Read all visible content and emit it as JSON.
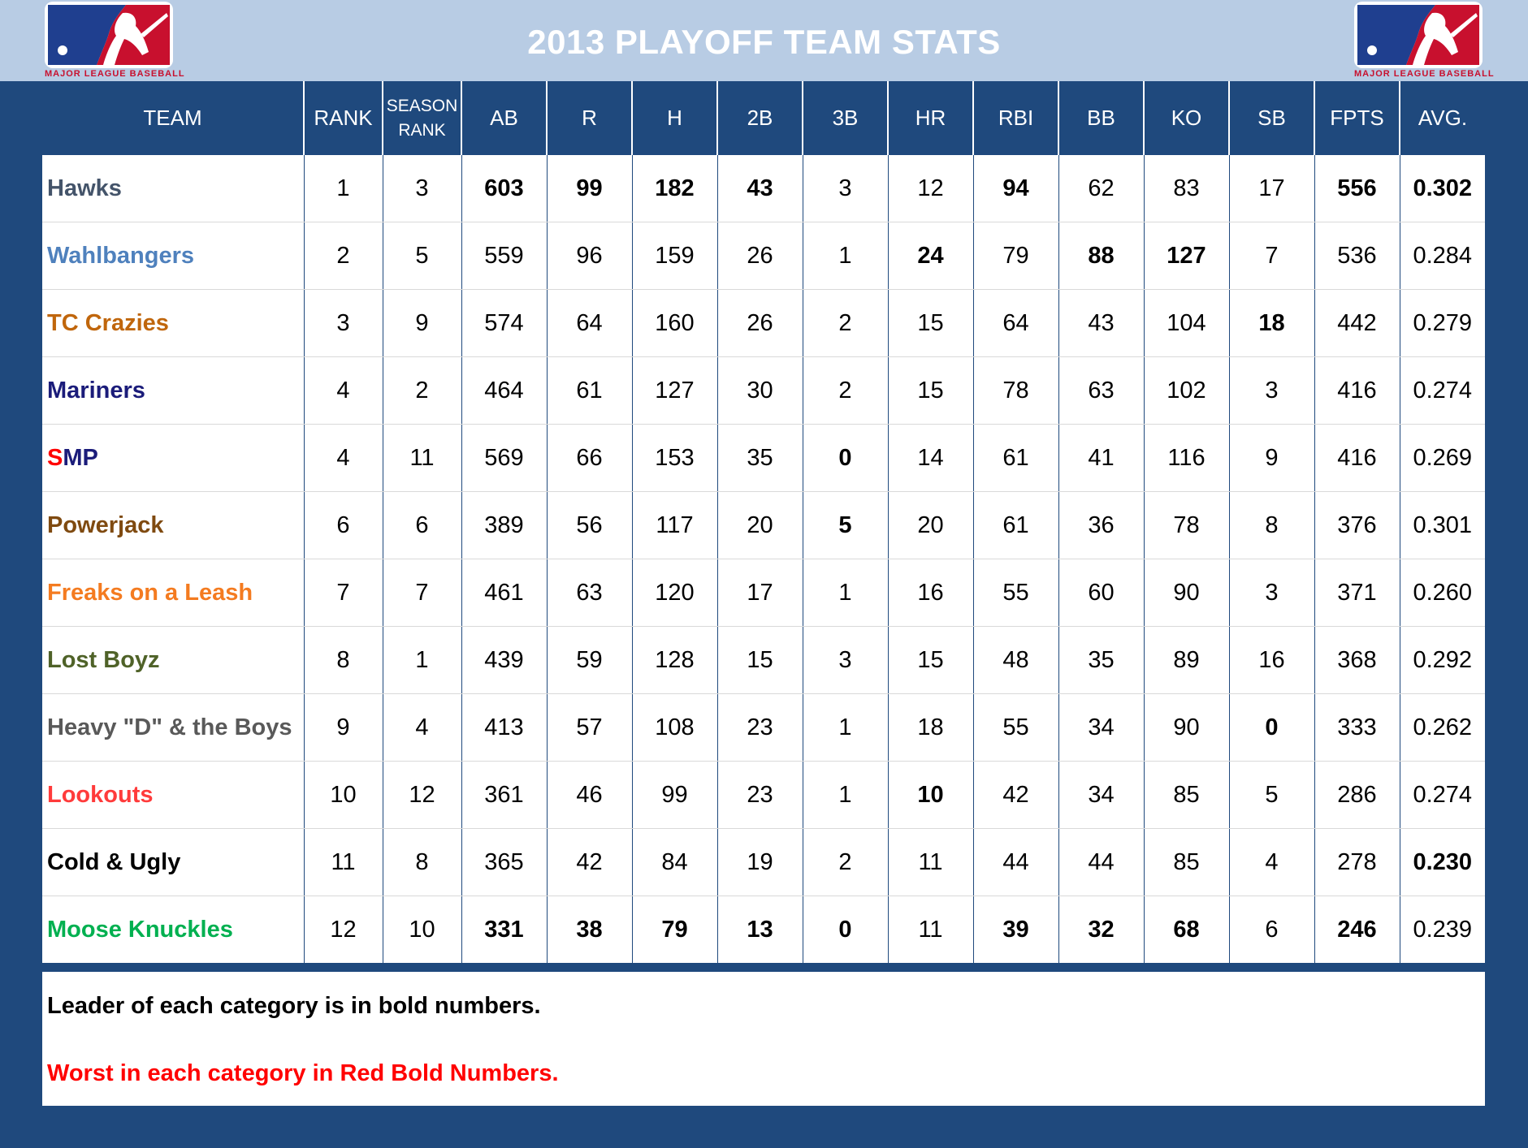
{
  "title": "2013 PLAYOFF TEAM STATS",
  "logo": {
    "text": "MAJOR LEAGUE BASEBALL",
    "colors": {
      "blue": "#1f3f8f",
      "red": "#c8102e"
    }
  },
  "colors": {
    "background": "#1f497d",
    "header_band": "#b8cce4",
    "worst": "#ff0000"
  },
  "columns": [
    "TEAM",
    "RANK",
    "SEASON RANK",
    "AB",
    "R",
    "H",
    "2B",
    "3B",
    "HR",
    "RBI",
    "BB",
    "KO",
    "SB",
    "FPTS",
    "AVG."
  ],
  "season_rank_header": {
    "line1": "SEASON",
    "line2": "RANK"
  },
  "rows": [
    {
      "team": "Hawks",
      "team_color": "#44546a",
      "rank": "1",
      "season_rank": "3",
      "ab": "603",
      "r": "99",
      "h": "182",
      "b2": "43",
      "b3": "3",
      "hr": "12",
      "rbi": "94",
      "bb": "62",
      "ko": "83",
      "sb": "17",
      "fpts": "556",
      "avg": "0.302"
    },
    {
      "team": "Wahlbangers",
      "team_color": "#4f81bd",
      "rank": "2",
      "season_rank": "5",
      "ab": "559",
      "r": "96",
      "h": "159",
      "b2": "26",
      "b3": "1",
      "hr": "24",
      "rbi": "79",
      "bb": "88",
      "ko": "127",
      "sb": "7",
      "fpts": "536",
      "avg": "0.284"
    },
    {
      "team": "TC Crazies",
      "team_color": "#c0660c",
      "rank": "3",
      "season_rank": "9",
      "ab": "574",
      "r": "64",
      "h": "160",
      "b2": "26",
      "b3": "2",
      "hr": "15",
      "rbi": "64",
      "bb": "43",
      "ko": "104",
      "sb": "18",
      "fpts": "442",
      "avg": "0.279"
    },
    {
      "team": "Mariners",
      "team_color": "#1b1c7a",
      "rank": "4",
      "season_rank": "2",
      "ab": "464",
      "r": "61",
      "h": "127",
      "b2": "30",
      "b3": "2",
      "hr": "15",
      "rbi": "78",
      "bb": "63",
      "ko": "102",
      "sb": "3",
      "fpts": "416",
      "avg": "0.274"
    },
    {
      "team_part1": "S",
      "team_part2": "MP",
      "team_color": "#ff0000",
      "team_color2": "#1b1c7a",
      "rank": "4",
      "season_rank": "11",
      "ab": "569",
      "r": "66",
      "h": "153",
      "b2": "35",
      "b3": "0",
      "hr": "14",
      "rbi": "61",
      "bb": "41",
      "ko": "116",
      "sb": "9",
      "fpts": "416",
      "avg": "0.269"
    },
    {
      "team": "Powerjack",
      "team_color": "#7f4a10",
      "rank": "6",
      "season_rank": "6",
      "ab": "389",
      "r": "56",
      "h": "117",
      "b2": "20",
      "b3": "5",
      "hr": "20",
      "rbi": "61",
      "bb": "36",
      "ko": "78",
      "sb": "8",
      "fpts": "376",
      "avg": "0.301"
    },
    {
      "team": "Freaks on a Leash",
      "team_color": "#f47b20",
      "rank": "7",
      "season_rank": "7",
      "ab": "461",
      "r": "63",
      "h": "120",
      "b2": "17",
      "b3": "1",
      "hr": "16",
      "rbi": "55",
      "bb": "60",
      "ko": "90",
      "sb": "3",
      "fpts": "371",
      "avg": "0.260"
    },
    {
      "team": "Lost Boyz",
      "team_color": "#4f6228",
      "rank": "8",
      "season_rank": "1",
      "ab": "439",
      "r": "59",
      "h": "128",
      "b2": "15",
      "b3": "3",
      "hr": "15",
      "rbi": "48",
      "bb": "35",
      "ko": "89",
      "sb": "16",
      "fpts": "368",
      "avg": "0.292"
    },
    {
      "team": "Heavy \"D\" & the Boys",
      "team_color": "#595959",
      "rank": "9",
      "season_rank": "4",
      "ab": "413",
      "r": "57",
      "h": "108",
      "b2": "23",
      "b3": "1",
      "hr": "18",
      "rbi": "55",
      "bb": "34",
      "ko": "90",
      "sb": "0",
      "fpts": "333",
      "avg": "0.262"
    },
    {
      "team": "Lookouts",
      "team_color": "#ff3b3b",
      "rank": "10",
      "season_rank": "12",
      "ab": "361",
      "r": "46",
      "h": "99",
      "b2": "23",
      "b3": "1",
      "hr": "10",
      "rbi": "42",
      "bb": "34",
      "ko": "85",
      "sb": "5",
      "fpts": "286",
      "avg": "0.274"
    },
    {
      "team": "Cold & Ugly",
      "team_color": "#000000",
      "rank": "11",
      "season_rank": "8",
      "ab": "365",
      "r": "42",
      "h": "84",
      "b2": "19",
      "b3": "2",
      "hr": "11",
      "rbi": "44",
      "bb": "44",
      "ko": "85",
      "sb": "4",
      "fpts": "278",
      "avg": "0.230"
    },
    {
      "team": "Moose Knuckles",
      "team_color": "#00b050",
      "rank": "12",
      "season_rank": "10",
      "ab": "331",
      "r": "38",
      "h": "79",
      "b2": "13",
      "b3": "0",
      "hr": "11",
      "rbi": "39",
      "bb": "32",
      "ko": "68",
      "sb": "6",
      "fpts": "246",
      "avg": "0.239"
    }
  ],
  "emphasis": {
    "bold_leader": [
      "0.ab",
      "0.r",
      "0.h",
      "0.b2",
      "0.rbi",
      "0.fpts",
      "0.avg",
      "1.hr",
      "1.bb",
      "2.sb",
      "5.b3",
      "11.ko"
    ],
    "red_worst": [
      "1.ko",
      "4.b3",
      "8.sb",
      "9.hr",
      "10.avg",
      "11.ab",
      "11.r",
      "11.h",
      "11.b2",
      "11.b3",
      "11.rbi",
      "11.bb",
      "11.fpts"
    ]
  },
  "notes": {
    "leader": "Leader of each category is in bold numbers.",
    "worst": "Worst in each category in Red Bold Numbers."
  }
}
